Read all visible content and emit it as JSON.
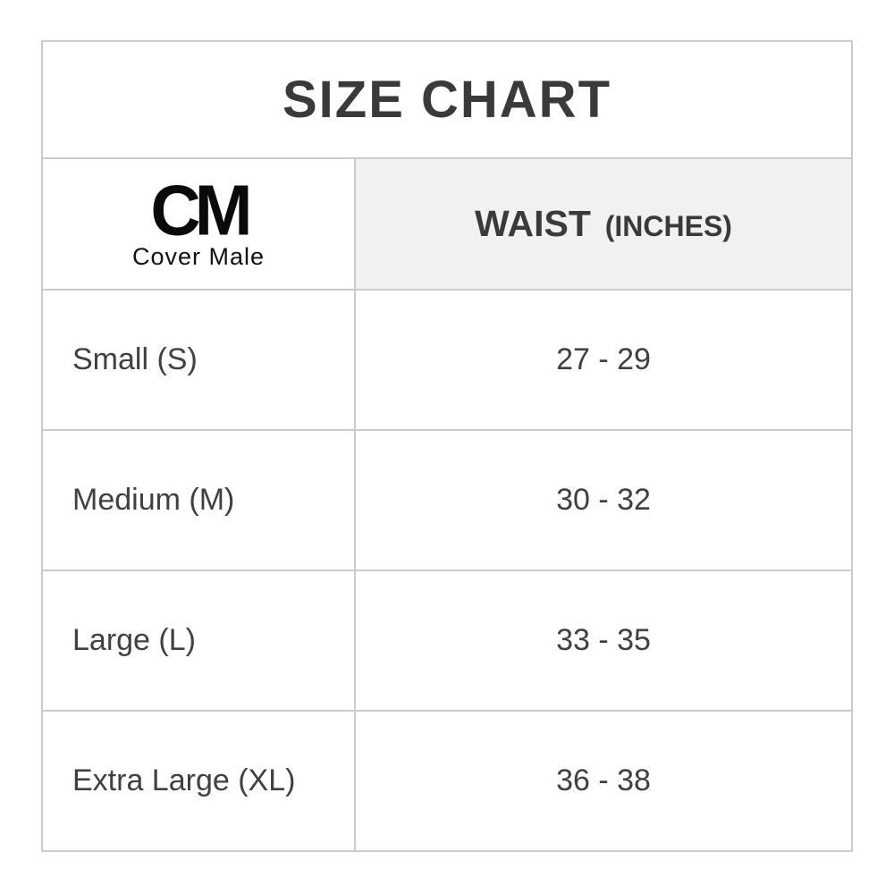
{
  "page": {
    "title": "SIZE CHART"
  },
  "brand": {
    "abbr": "CM",
    "name": "Cover Male"
  },
  "table": {
    "header": {
      "waist_main": "WAIST",
      "waist_sub": "(INCHES)"
    },
    "rows": [
      {
        "size": "Small (S)",
        "waist": "27 - 29"
      },
      {
        "size": "Medium (M)",
        "waist": "30 - 32"
      },
      {
        "size": "Large (L)",
        "waist": "33 - 35"
      },
      {
        "size": "Extra Large (XL)",
        "waist": "36 - 38"
      }
    ]
  },
  "colors": {
    "border": "#cccccc",
    "header_bg": "#f1f1f1",
    "text": "#3a3a3a",
    "logo": "#0a0a0a",
    "background": "#ffffff"
  }
}
